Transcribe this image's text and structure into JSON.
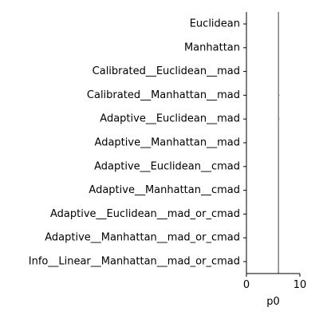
{
  "chart_data": {
    "type": "bar",
    "orientation": "horizontal",
    "categories": [
      "Euclidean",
      "Manhattan",
      "Calibrated__Euclidean__mad",
      "Calibrated__Manhattan__mad",
      "Adaptive__Euclidean__mad",
      "Adaptive__Manhattan__mad",
      "Adaptive__Euclidean__cmad",
      "Adaptive__Manhattan__cmad",
      "Adaptive__Euclidean__mad_or_cmad",
      "Adaptive__Manhattan__mad_or_cmad",
      "Info__Linear__Manhattan__mad_or_cmad"
    ],
    "values": [
      0,
      0,
      0,
      0,
      0,
      0,
      0,
      0,
      0,
      0,
      0
    ],
    "xlabel": "p0",
    "ylabel": "",
    "xlim": [
      0,
      10
    ],
    "xticks": [
      0,
      10
    ],
    "reference_line": {
      "x": 6
    },
    "grid": false,
    "colors": {
      "reference_line": "#808080",
      "axes": "#000000",
      "error_bar": "#808080"
    }
  }
}
